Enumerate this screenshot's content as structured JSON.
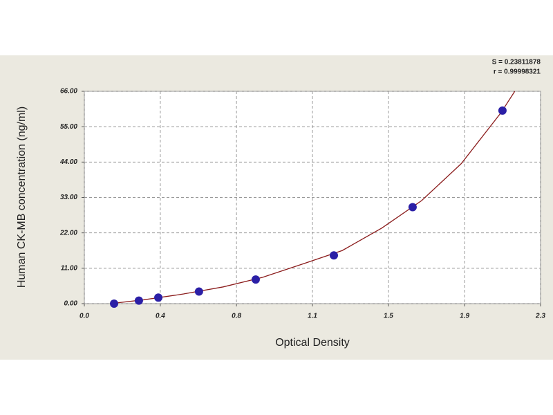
{
  "chart_data": {
    "type": "scatter",
    "annotations": [
      "S = 0.23811878",
      "r = 0.99998321"
    ],
    "x_label": "Optical Density",
    "y_label": "Human CK-MB concentration (ng/ml)",
    "xlim": [
      0,
      2.3
    ],
    "xticks": [
      {
        "value": 0,
        "label": "0.0"
      },
      {
        "value": 0.383,
        "label": "0.4"
      },
      {
        "value": 0.767,
        "label": "0.8"
      },
      {
        "value": 1.15,
        "label": "1.1"
      },
      {
        "value": 1.533,
        "label": "1.5"
      },
      {
        "value": 1.917,
        "label": "1.9"
      },
      {
        "value": 2.3,
        "label": "2.3"
      }
    ],
    "ylim": [
      0,
      66
    ],
    "yticks": [
      {
        "value": 0,
        "label": "0.00"
      },
      {
        "value": 11,
        "label": "11.00"
      },
      {
        "value": 22,
        "label": "22.00"
      },
      {
        "value": 33,
        "label": "33.00"
      },
      {
        "value": 44,
        "label": "44.00"
      },
      {
        "value": 55,
        "label": "55.00"
      },
      {
        "value": 66,
        "label": "66.00"
      }
    ],
    "grid": true,
    "series": [
      {
        "mode": "line",
        "color": "#8b1c1c",
        "x": [
          0.13,
          0.3,
          0.5,
          0.7,
          0.9,
          1.1,
          1.3,
          1.5,
          1.7,
          1.9,
          2.1,
          2.17
        ],
        "values": [
          0,
          1.2,
          3.0,
          5.2,
          8.2,
          12.3,
          16.5,
          23.5,
          32.0,
          43.5,
          59.3,
          66
        ]
      },
      {
        "mode": "markers",
        "color": "#2b1fa6",
        "x": [
          0.15,
          0.275,
          0.373,
          0.578,
          0.864,
          1.258,
          1.655,
          2.108
        ],
        "values": [
          0,
          0.94,
          1.88,
          3.75,
          7.5,
          15,
          30,
          60
        ]
      }
    ]
  }
}
